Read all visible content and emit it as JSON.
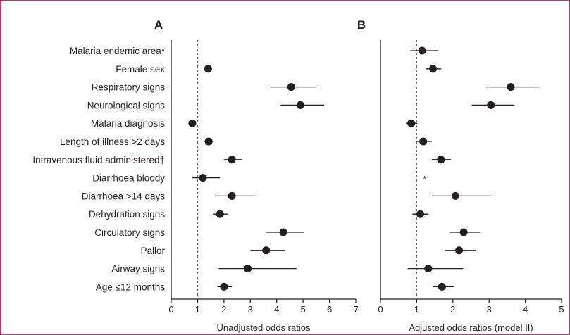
{
  "chart_data": [
    {
      "panel": "A",
      "type": "scatter",
      "xlabel": "Unadjusted odds ratios",
      "xlim": [
        0,
        7
      ],
      "xticks": [
        "0",
        "1",
        "2",
        "3",
        "4",
        "5",
        "6",
        "7"
      ],
      "reference_line_x": 1,
      "grid": false,
      "categories": [
        "Malaria endemic area*",
        "Female sex",
        "Respiratory signs",
        "Neurological signs",
        "Malaria diagnosis",
        "Length of illness >2 days",
        "Intravenous fluid administered†",
        "Diarrhoea bloody",
        "Diarrhoea >14 days",
        "Dehydration signs",
        "Circulatory signs",
        "Pallor",
        "Airway signs",
        "Age ≤12 months"
      ],
      "points": [
        null,
        {
          "or": 1.4,
          "lo": 1.3,
          "hi": 1.5
        },
        {
          "or": 4.55,
          "lo": 3.75,
          "hi": 5.5
        },
        {
          "or": 4.9,
          "lo": 4.15,
          "hi": 5.8
        },
        {
          "or": 0.8,
          "lo": 0.75,
          "hi": 0.85
        },
        {
          "or": 1.42,
          "lo": 1.25,
          "hi": 1.62
        },
        {
          "or": 2.3,
          "lo": 2.0,
          "hi": 2.7
        },
        {
          "or": 1.2,
          "lo": 0.8,
          "hi": 1.85
        },
        {
          "or": 2.3,
          "lo": 1.65,
          "hi": 3.2
        },
        {
          "or": 1.85,
          "lo": 1.6,
          "hi": 2.15
        },
        {
          "or": 4.25,
          "lo": 3.6,
          "hi": 5.05
        },
        {
          "or": 3.6,
          "lo": 3.0,
          "hi": 4.3
        },
        {
          "or": 2.9,
          "lo": 1.8,
          "hi": 4.75
        },
        {
          "or": 2.0,
          "lo": 1.75,
          "hi": 2.3
        }
      ]
    },
    {
      "panel": "B",
      "type": "scatter",
      "xlabel": "Adjusted odds ratios (model II)",
      "xlim": [
        0,
        5
      ],
      "xticks": [
        "0",
        "1",
        "2",
        "3",
        "4",
        "5"
      ],
      "reference_line_x": 1,
      "grid": false,
      "points": [
        {
          "or": 1.15,
          "lo": 0.82,
          "hi": 1.6
        },
        {
          "or": 1.45,
          "lo": 1.25,
          "hi": 1.68
        },
        {
          "or": 3.6,
          "lo": 2.92,
          "hi": 4.4
        },
        {
          "or": 3.05,
          "lo": 2.52,
          "hi": 3.7
        },
        {
          "or": 0.85,
          "lo": 0.7,
          "hi": 1.02
        },
        {
          "or": 1.18,
          "lo": 0.98,
          "hi": 1.42
        },
        {
          "or": 1.67,
          "lo": 1.42,
          "hi": 1.95
        },
        null,
        {
          "or": 2.07,
          "lo": 1.42,
          "hi": 3.08
        },
        {
          "or": 1.1,
          "lo": 0.88,
          "hi": 1.33
        },
        {
          "or": 2.3,
          "lo": 1.9,
          "hi": 2.75
        },
        {
          "or": 2.17,
          "lo": 1.78,
          "hi": 2.63
        },
        {
          "or": 1.32,
          "lo": 0.75,
          "hi": 2.28
        },
        {
          "or": 1.7,
          "lo": 1.45,
          "hi": 2.03
        }
      ],
      "note_marks": [
        {
          "row": 7,
          "text": "*"
        }
      ]
    }
  ],
  "panel_labels": [
    "A",
    "B"
  ],
  "colors": {
    "frame": "#b03a6e",
    "ink": "#231f20",
    "reference_line": "#555555"
  }
}
